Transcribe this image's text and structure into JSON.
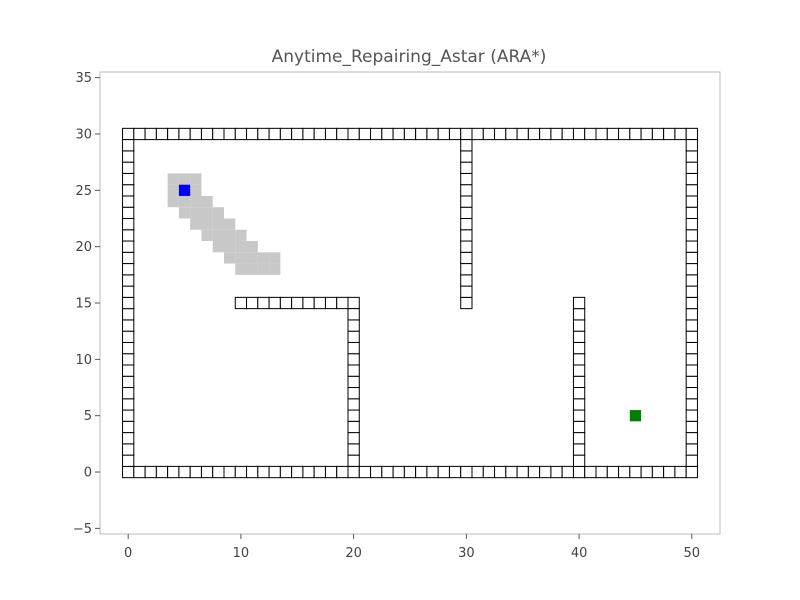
{
  "chart_data": {
    "type": "scatter",
    "title": "Anytime_Repairing_Astar (ARA*)",
    "xlabel": "",
    "ylabel": "",
    "xlim": [
      -2.5,
      52.5
    ],
    "ylim": [
      -5.5,
      35.5
    ],
    "x_ticks": [
      0,
      10,
      20,
      30,
      40,
      50
    ],
    "y_ticks": [
      -5,
      0,
      5,
      10,
      15,
      20,
      25,
      30,
      35
    ],
    "x_tick_labels": [
      "0",
      "10",
      "20",
      "30",
      "40",
      "50"
    ],
    "y_tick_labels": [
      "−5",
      "0",
      "5",
      "10",
      "15",
      "20",
      "25",
      "30",
      "35"
    ],
    "grid": false,
    "series": [
      {
        "role": "obstacles",
        "marker": "black-outlined square",
        "segments": [
          {
            "from": [
              0,
              0
            ],
            "to": [
              50,
              0
            ]
          },
          {
            "from": [
              0,
              30
            ],
            "to": [
              50,
              30
            ]
          },
          {
            "from": [
              0,
              0
            ],
            "to": [
              0,
              30
            ]
          },
          {
            "from": [
              50,
              0
            ],
            "to": [
              50,
              30
            ]
          },
          {
            "from": [
              10,
              15
            ],
            "to": [
              20,
              15
            ]
          },
          {
            "from": [
              20,
              0
            ],
            "to": [
              20,
              15
            ]
          },
          {
            "from": [
              30,
              15
            ],
            "to": [
              30,
              30
            ]
          },
          {
            "from": [
              40,
              0
            ],
            "to": [
              40,
              15
            ]
          }
        ]
      },
      {
        "role": "visited",
        "color": "#c8c8c8",
        "rows": [
          {
            "y": 26,
            "x_from": 4,
            "x_to": 6
          },
          {
            "y": 25,
            "x_from": 4,
            "x_to": 6
          },
          {
            "y": 24,
            "x_from": 4,
            "x_to": 7
          },
          {
            "y": 23,
            "x_from": 5,
            "x_to": 8
          },
          {
            "y": 22,
            "x_from": 6,
            "x_to": 9
          },
          {
            "y": 21,
            "x_from": 7,
            "x_to": 10
          },
          {
            "y": 20,
            "x_from": 8,
            "x_to": 11
          },
          {
            "y": 19,
            "x_from": 9,
            "x_to": 13
          },
          {
            "y": 18,
            "x_from": 10,
            "x_to": 13
          }
        ]
      },
      {
        "role": "start",
        "color": "#0000ff",
        "points": [
          [
            5,
            25
          ]
        ]
      },
      {
        "role": "goal",
        "color": "#008000",
        "points": [
          [
            45,
            5
          ]
        ]
      }
    ]
  }
}
